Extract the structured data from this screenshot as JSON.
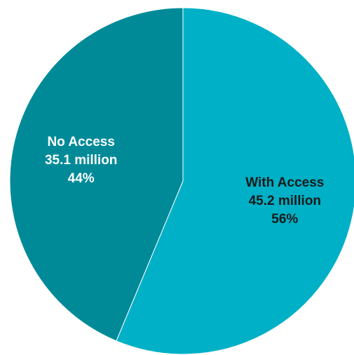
{
  "chart_data": {
    "type": "pie",
    "title": "",
    "start_angle_deg": 0,
    "direction": "clockwise",
    "slices": [
      {
        "name": "With Access",
        "value": 45.2,
        "value_label": "45.2 million",
        "percent_label": "56%",
        "color": "#00B0C6",
        "label_color": "#1A1A1A"
      },
      {
        "name": "No Access",
        "value": 35.1,
        "value_label": "35.1 million",
        "percent_label": "44%",
        "color": "#008A98",
        "label_color": "#FFFFFF"
      }
    ],
    "legend": "none"
  }
}
